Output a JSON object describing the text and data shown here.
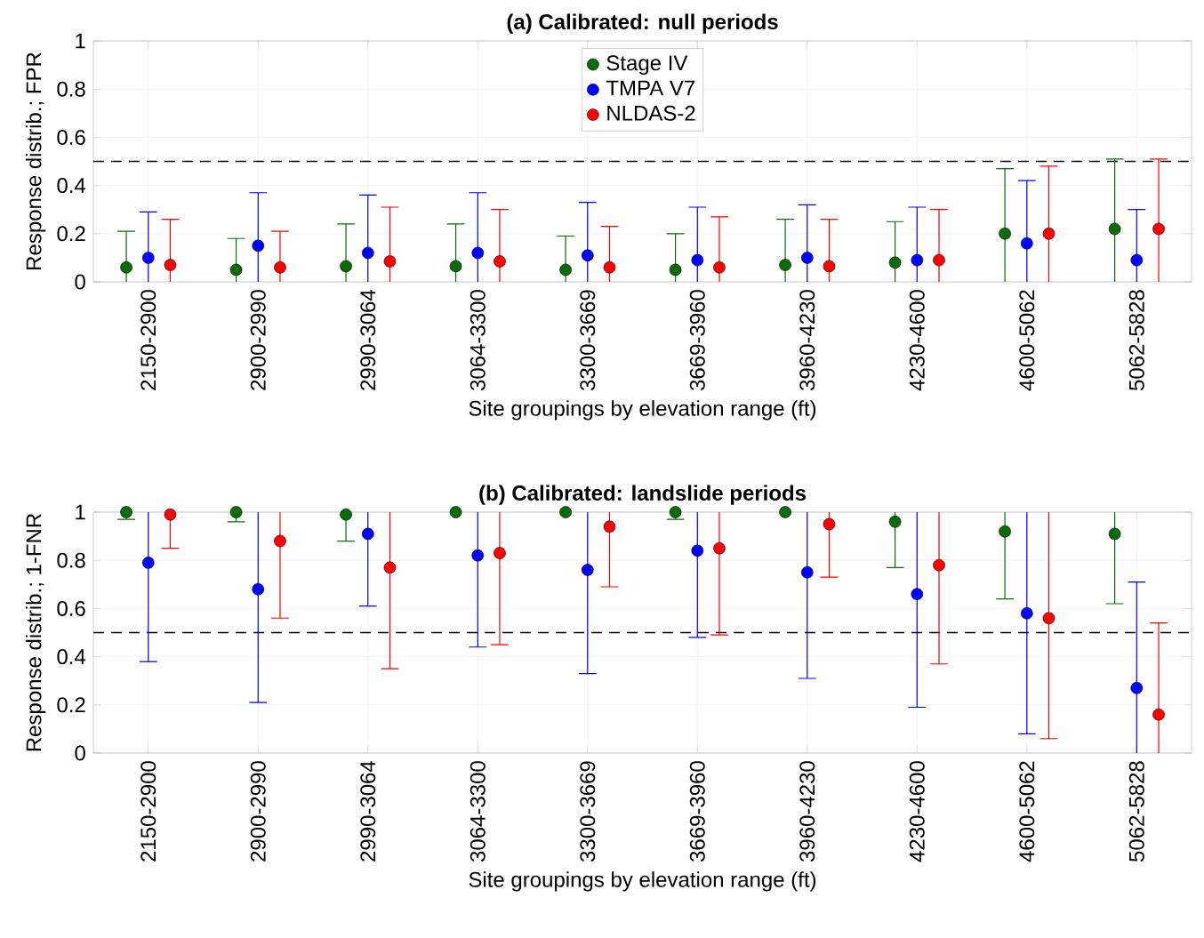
{
  "chart_data": [
    {
      "type": "scatter",
      "title": "**(a) Calibrated: null periods**",
      "xlabel": "Site groupings by elevation range (ft)",
      "ylabel": "Response distrib.; FPR",
      "categories": [
        "2150-2900",
        "2900-2990",
        "2990-3064",
        "3064-3300",
        "3300-3669",
        "3669-3960",
        "3960-4230",
        "4230-4600",
        "4600-5062",
        "5062-5828"
      ],
      "ylim": [
        0,
        1
      ],
      "yticks": [
        0,
        0.2,
        0.4,
        0.6,
        0.8,
        1
      ],
      "grid": true,
      "legend": "top",
      "marker": "circle",
      "ref_lines": [
        {
          "axis": "y",
          "value": 0.5,
          "color": "#000000",
          "line_style": "dashed"
        }
      ],
      "series": [
        {
          "name": "Stage IV",
          "color": "#0b6b0b",
          "values": [
            0.06,
            0.05,
            0.065,
            0.065,
            0.05,
            0.05,
            0.07,
            0.08,
            0.2,
            0.22
          ],
          "errors": [
            [
              0,
              0.21
            ],
            [
              0,
              0.18
            ],
            [
              0,
              0.24
            ],
            [
              0,
              0.24
            ],
            [
              0,
              0.19
            ],
            [
              0,
              0.2
            ],
            [
              0,
              0.26
            ],
            [
              0,
              0.25
            ],
            [
              0,
              0.47
            ],
            [
              0,
              0.51
            ]
          ]
        },
        {
          "name": "TMPA V7",
          "color": "#0000ff",
          "values": [
            0.1,
            0.15,
            0.12,
            0.12,
            0.11,
            0.09,
            0.1,
            0.09,
            0.16,
            0.09
          ],
          "errors": [
            [
              0,
              0.29
            ],
            [
              0,
              0.37
            ],
            [
              0,
              0.36
            ],
            [
              0,
              0.37
            ],
            [
              0,
              0.33
            ],
            [
              0,
              0.31
            ],
            [
              0,
              0.32
            ],
            [
              0,
              0.31
            ],
            [
              0,
              0.42
            ],
            [
              0,
              0.3
            ]
          ]
        },
        {
          "name": "NLDAS-2",
          "color": "#ff0000",
          "values": [
            0.07,
            0.06,
            0.085,
            0.085,
            0.06,
            0.06,
            0.065,
            0.09,
            0.2,
            0.22
          ],
          "errors": [
            [
              0,
              0.26
            ],
            [
              0,
              0.21
            ],
            [
              0,
              0.31
            ],
            [
              0,
              0.3
            ],
            [
              0,
              0.23
            ],
            [
              0,
              0.27
            ],
            [
              0,
              0.26
            ],
            [
              0,
              0.3
            ],
            [
              0,
              0.48
            ],
            [
              0,
              0.51
            ]
          ]
        }
      ]
    },
    {
      "type": "scatter",
      "title": "**(b) Calibrated: landslide periods**",
      "xlabel": "Site groupings by elevation range (ft)",
      "ylabel": "Response distrib.; 1-FNR",
      "categories": [
        "2150-2900",
        "2900-2990",
        "2990-3064",
        "3064-3300",
        "3300-3669",
        "3669-3960",
        "3960-4230",
        "4230-4600",
        "4600-5062",
        "5062-5828"
      ],
      "ylim": [
        0,
        1
      ],
      "yticks": [
        0,
        0.2,
        0.4,
        0.6,
        0.8,
        1
      ],
      "grid": true,
      "marker": "circle",
      "ref_lines": [
        {
          "axis": "y",
          "value": 0.5,
          "color": "#000000",
          "line_style": "dashed"
        }
      ],
      "series": [
        {
          "color": "#0b6b0b",
          "values": [
            1,
            1,
            0.99,
            1,
            1,
            1,
            1,
            0.96,
            0.92,
            0.91
          ],
          "errors": [
            [
              0.97,
              1
            ],
            [
              0.96,
              1
            ],
            [
              0.88,
              1
            ],
            [
              1,
              1
            ],
            [
              1,
              1
            ],
            [
              0.97,
              1
            ],
            [
              1,
              1
            ],
            [
              0.77,
              1
            ],
            [
              0.64,
              1
            ],
            [
              0.62,
              1
            ]
          ]
        },
        {
          "color": "#0000ff",
          "values": [
            0.79,
            0.68,
            0.91,
            0.82,
            0.76,
            0.84,
            0.75,
            0.66,
            0.58,
            0.27
          ],
          "errors": [
            [
              0.38,
              1
            ],
            [
              0.21,
              1
            ],
            [
              0.61,
              1
            ],
            [
              0.44,
              1
            ],
            [
              0.33,
              1
            ],
            [
              0.48,
              1
            ],
            [
              0.31,
              1
            ],
            [
              0.19,
              1
            ],
            [
              0.08,
              1
            ],
            [
              0,
              0.71
            ]
          ]
        },
        {
          "color": "#ff0000",
          "values": [
            0.99,
            0.88,
            0.77,
            0.83,
            0.94,
            0.85,
            0.95,
            0.78,
            0.56,
            0.16
          ],
          "errors": [
            [
              0.85,
              1
            ],
            [
              0.56,
              1
            ],
            [
              0.35,
              1
            ],
            [
              0.45,
              1
            ],
            [
              0.69,
              1
            ],
            [
              0.49,
              1
            ],
            [
              0.73,
              1
            ],
            [
              0.37,
              1
            ],
            [
              0.06,
              1
            ],
            [
              0,
              0.54
            ]
          ]
        }
      ]
    }
  ]
}
